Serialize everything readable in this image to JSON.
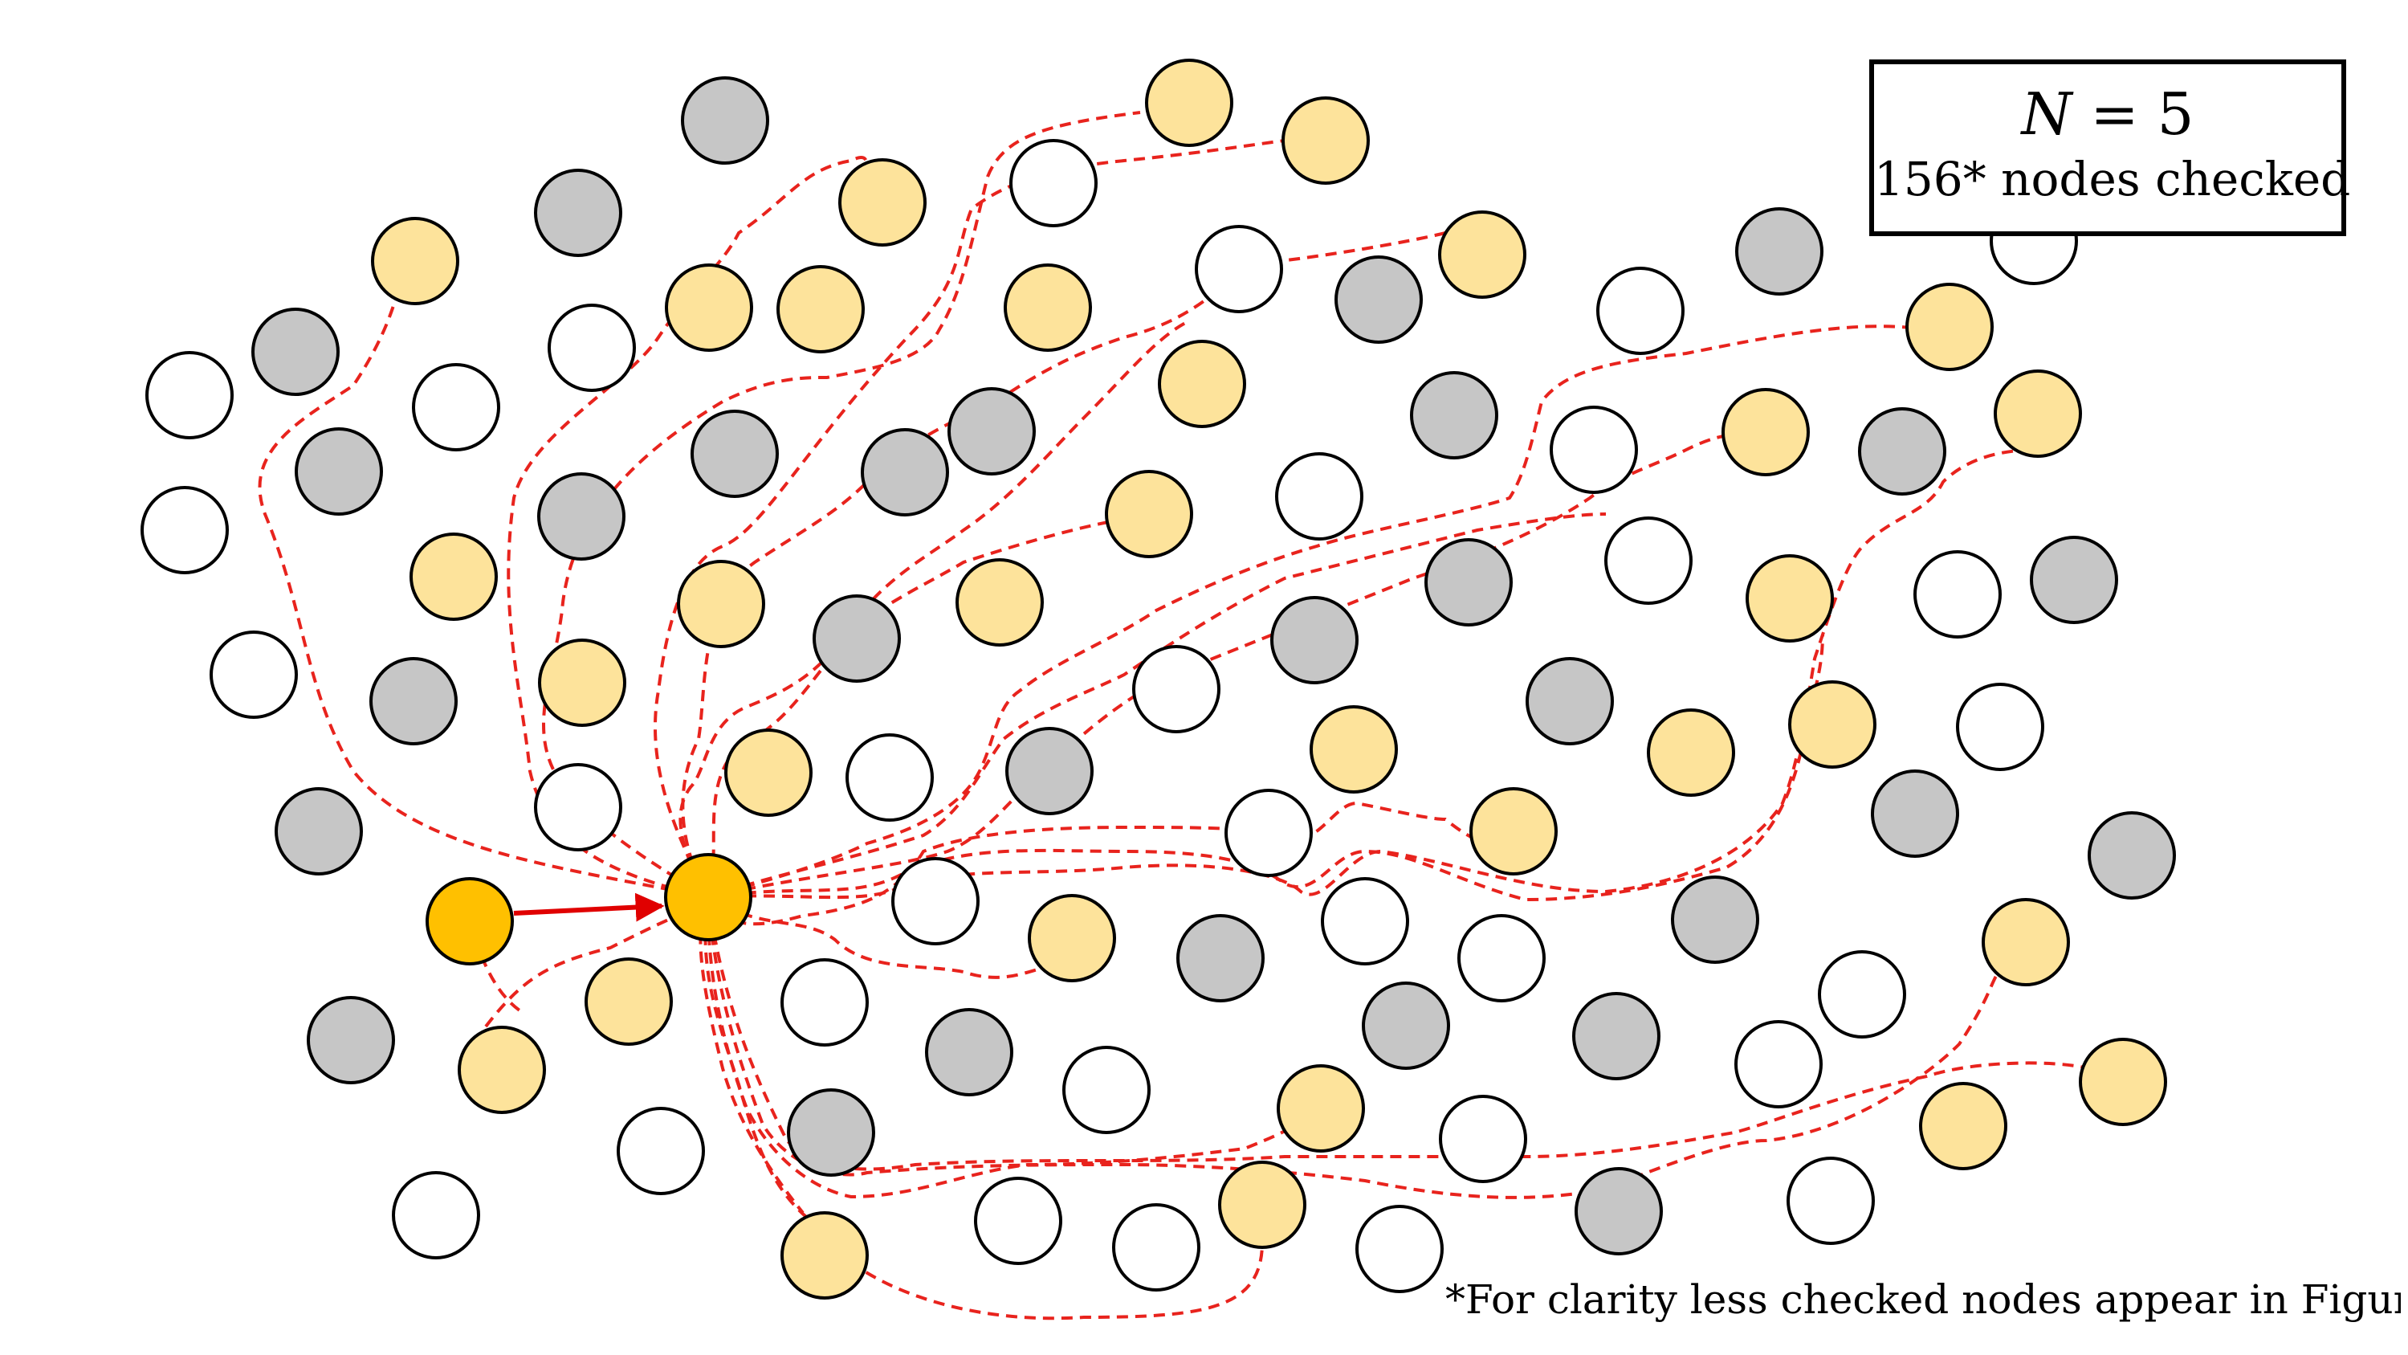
{
  "legend": {
    "formula_var": "N",
    "formula_rest": " = 5",
    "nodes_checked": "156* nodes checked"
  },
  "footnote": "*For clarity less checked nodes appear in Figure",
  "colors": {
    "unvisited": "#ffffff",
    "visited_gray": "#c6c6c6",
    "result_node": "#fde39b",
    "query_node": "#ffc000",
    "path": "#e8231d",
    "arrow": "#e00000",
    "outline": "#000000"
  },
  "node_types": [
    "query-node",
    "entry-node",
    "result-node",
    "checked-node",
    "unchecked-node"
  ],
  "icons": {
    "edge": "dashed-path",
    "step": "arrow"
  }
}
